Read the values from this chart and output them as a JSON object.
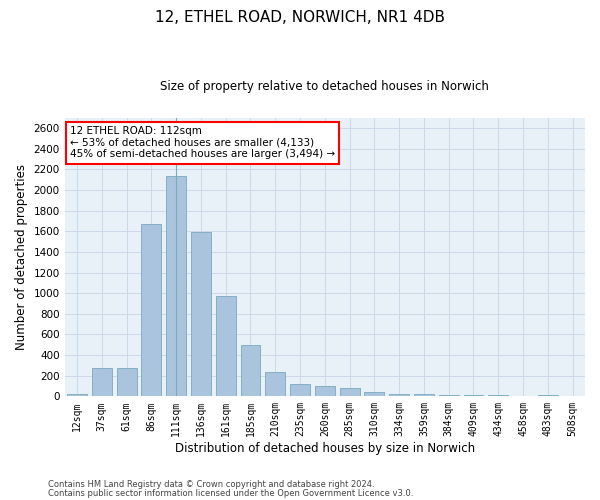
{
  "title_line1": "12, ETHEL ROAD, NORWICH, NR1 4DB",
  "title_line2": "Size of property relative to detached houses in Norwich",
  "xlabel": "Distribution of detached houses by size in Norwich",
  "ylabel": "Number of detached properties",
  "categories": [
    "12sqm",
    "37sqm",
    "61sqm",
    "86sqm",
    "111sqm",
    "136sqm",
    "161sqm",
    "185sqm",
    "210sqm",
    "235sqm",
    "260sqm",
    "285sqm",
    "310sqm",
    "334sqm",
    "359sqm",
    "384sqm",
    "409sqm",
    "434sqm",
    "458sqm",
    "483sqm",
    "508sqm"
  ],
  "values": [
    18,
    278,
    278,
    1670,
    2140,
    1590,
    970,
    500,
    240,
    120,
    100,
    85,
    40,
    25,
    22,
    16,
    16,
    10,
    5,
    14,
    5
  ],
  "bar_color": "#aac4dd",
  "bar_edge_color": "#7aaabb",
  "highlight_index": 4,
  "annotation_text": "12 ETHEL ROAD: 112sqm\n← 53% of detached houses are smaller (4,133)\n45% of semi-detached houses are larger (3,494) →",
  "annotation_box_color": "white",
  "annotation_box_edge_color": "red",
  "ylim": [
    0,
    2700
  ],
  "yticks": [
    0,
    200,
    400,
    600,
    800,
    1000,
    1200,
    1400,
    1600,
    1800,
    2000,
    2200,
    2400,
    2600
  ],
  "grid_color": "#ccd9e8",
  "background_color": "#e8f0f8",
  "footer_line1": "Contains HM Land Registry data © Crown copyright and database right 2024.",
  "footer_line2": "Contains public sector information licensed under the Open Government Licence v3.0."
}
